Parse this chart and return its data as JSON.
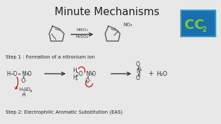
{
  "title": "Minute Mechanisms",
  "title_fontsize": 11,
  "bg_color": "#f0f0f0",
  "title_color": "#222222",
  "step1_text": "Step 1 : Formation of a nitronium ion",
  "step2_text": "Step 2: Electrophilic Aromatic Substitution (EAS)",
  "reaction_top_reagent": "HNO₃",
  "reaction_top_reagent2": "H₂SO₄",
  "reaction_top_product_label": "NO₂",
  "cc_box_color": "#1a6fad",
  "cc_text": "CC",
  "cc_sub": "2",
  "cc_text_color": "#7dc832",
  "step1_color": "#222222",
  "red_color": "#cc1100",
  "dark_color": "#333333",
  "image_bg": "#e8e8e8"
}
